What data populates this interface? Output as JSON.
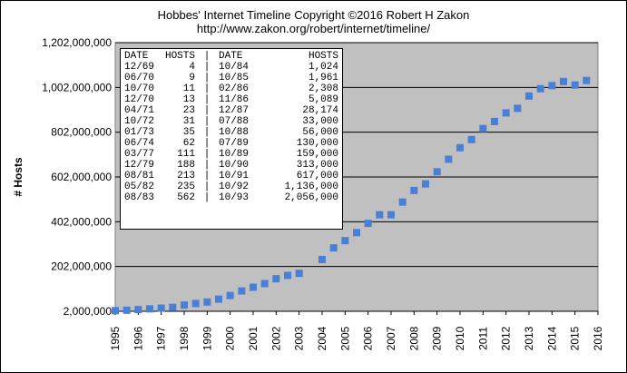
{
  "title": "Hobbes' Internet Timeline Copyright ©2016 Robert H Zakon",
  "subtitle": "http://www.zakon.org/robert/internet/timeline/",
  "table": {
    "headers": [
      "DATE",
      "HOSTS",
      "|",
      "DATE",
      "HOSTS"
    ],
    "rows": [
      [
        "12/69",
        "4",
        "|",
        "10/84",
        "1,024"
      ],
      [
        "06/70",
        "9",
        "|",
        "10/85",
        "1,961"
      ],
      [
        "10/70",
        "11",
        "|",
        "02/86",
        "2,308"
      ],
      [
        "12/70",
        "13",
        "|",
        "11/86",
        "5,089"
      ],
      [
        "04/71",
        "23",
        "|",
        "12/87",
        "28,174"
      ],
      [
        "10/72",
        "31",
        "|",
        "07/88",
        "33,000"
      ],
      [
        "01/73",
        "35",
        "|",
        "10/88",
        "56,000"
      ],
      [
        "06/74",
        "62",
        "|",
        "07/89",
        "130,000"
      ],
      [
        "03/77",
        "111",
        "|",
        "10/89",
        "159,000"
      ],
      [
        "12/79",
        "188",
        "|",
        "10/90",
        "313,000"
      ],
      [
        "08/81",
        "213",
        "|",
        "10/91",
        "617,000"
      ],
      [
        "05/82",
        "235",
        "|",
        "10/92",
        "1,136,000"
      ],
      [
        "08/83",
        "562",
        "|",
        "10/93",
        "2,056,000"
      ]
    ]
  },
  "chart_data": {
    "type": "scatter",
    "title": "Hobbes' Internet Timeline Copyright ©2016 Robert H Zakon",
    "subtitle": "http://www.zakon.org/robert/internet/timeline/",
    "ylabel": "# Hosts",
    "xlabel": "",
    "xlim": [
      1995,
      2016
    ],
    "ylim": [
      2000000,
      1202000000
    ],
    "yticks": [
      2000000,
      202000000,
      402000000,
      602000000,
      802000000,
      1002000000,
      1202000000
    ],
    "ytick_labels": [
      "2,000,000",
      "202,000,000",
      "402,000,000",
      "602,000,000",
      "802,000,000",
      "1,002,000,000",
      "1,202,000,000"
    ],
    "xticks": [
      1995,
      1996,
      1997,
      1998,
      1999,
      2000,
      2001,
      2002,
      2003,
      2004,
      2005,
      2006,
      2007,
      2008,
      2009,
      2010,
      2011,
      2012,
      2013,
      2014,
      2015,
      2016
    ],
    "xtick_labels": [
      "1995",
      "1996",
      "1997",
      "1998",
      "1999",
      "2000",
      "2001",
      "2002",
      "2003",
      "2004",
      "2005",
      "2006",
      "2007",
      "2008",
      "2009",
      "2010",
      "2011",
      "2012",
      "2013",
      "2014",
      "2015",
      "2016"
    ],
    "grid": true,
    "background_color": "#c0c0c0",
    "marker_color": "#4a7fd6",
    "series": [
      {
        "x": [
          1995.0,
          1995.5,
          1996.0,
          1996.5,
          1997.0,
          1997.5,
          1998.0,
          1998.5,
          1999.0,
          1999.5,
          2000.0,
          2000.5,
          2001.0,
          2001.5,
          2002.0,
          2002.5,
          2003.0,
          2004.0,
          2004.5,
          2005.0,
          2005.5,
          2006.0,
          2006.5,
          2007.0,
          2007.5,
          2008.0,
          2008.5,
          2009.0,
          2009.5,
          2010.0,
          2010.5,
          2011.0,
          2011.5,
          2012.0,
          2012.5,
          2013.0,
          2013.5,
          2014.0,
          2014.5,
          2015.0,
          2015.5
        ],
        "y": [
          4852000,
          6642000,
          9472000,
          12881000,
          16146000,
          19540000,
          29670000,
          36739000,
          43230000,
          56218000,
          72398000,
          93047000,
          109574000,
          125888000,
          147345000,
          162128000,
          171638000,
          233101000,
          285139000,
          317646000,
          353284000,
          394991000,
          433193000,
          433193000,
          489774000,
          541677000,
          570937000,
          625226000,
          681064000,
          732740000,
          768913000,
          818374000,
          849869000,
          888239000,
          908585000,
          963518000,
          996230000,
          1010251000,
          1028544000,
          1012706000,
          1033000000
        ]
      }
    ]
  }
}
